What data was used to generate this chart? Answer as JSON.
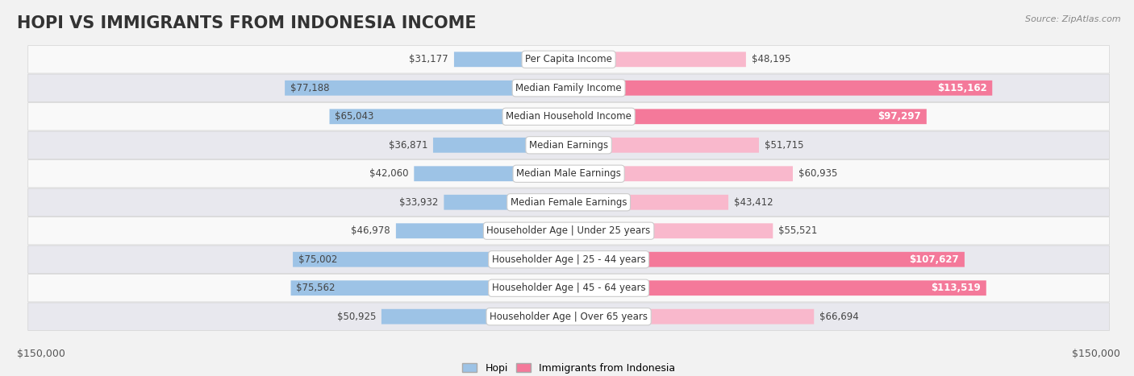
{
  "title": "Hopi vs Immigrants from Indonesia Income",
  "source": "Source: ZipAtlas.com",
  "categories": [
    "Per Capita Income",
    "Median Family Income",
    "Median Household Income",
    "Median Earnings",
    "Median Male Earnings",
    "Median Female Earnings",
    "Householder Age | Under 25 years",
    "Householder Age | 25 - 44 years",
    "Householder Age | 45 - 64 years",
    "Householder Age | Over 65 years"
  ],
  "hopi_values": [
    31177,
    77188,
    65043,
    36871,
    42060,
    33932,
    46978,
    75002,
    75562,
    50925
  ],
  "indonesia_values": [
    48195,
    115162,
    97297,
    51715,
    60935,
    43412,
    55521,
    107627,
    113519,
    66694
  ],
  "hopi_labels": [
    "$31,177",
    "$77,188",
    "$65,043",
    "$36,871",
    "$42,060",
    "$33,932",
    "$46,978",
    "$75,002",
    "$75,562",
    "$50,925"
  ],
  "indonesia_labels": [
    "$48,195",
    "$115,162",
    "$97,297",
    "$51,715",
    "$60,935",
    "$43,412",
    "$55,521",
    "$107,627",
    "$113,519",
    "$66,694"
  ],
  "hopi_color": "#9dc3e6",
  "indonesia_color": "#f4799a",
  "indonesia_light_color": "#f9b8cc",
  "max_value": 150000,
  "background_color": "#f2f2f2",
  "row_bg_even": "#f9f9f9",
  "row_bg_odd": "#e8e8ee",
  "legend_hopi": "Hopi",
  "legend_indonesia": "Immigrants from Indonesia",
  "xlabel_left": "$150,000",
  "xlabel_right": "$150,000",
  "title_fontsize": 15,
  "label_fontsize": 8.5,
  "category_fontsize": 8.5,
  "bar_height": 0.52,
  "inside_label_threshold_hopi": 55000,
  "inside_label_threshold_indo": 80000
}
